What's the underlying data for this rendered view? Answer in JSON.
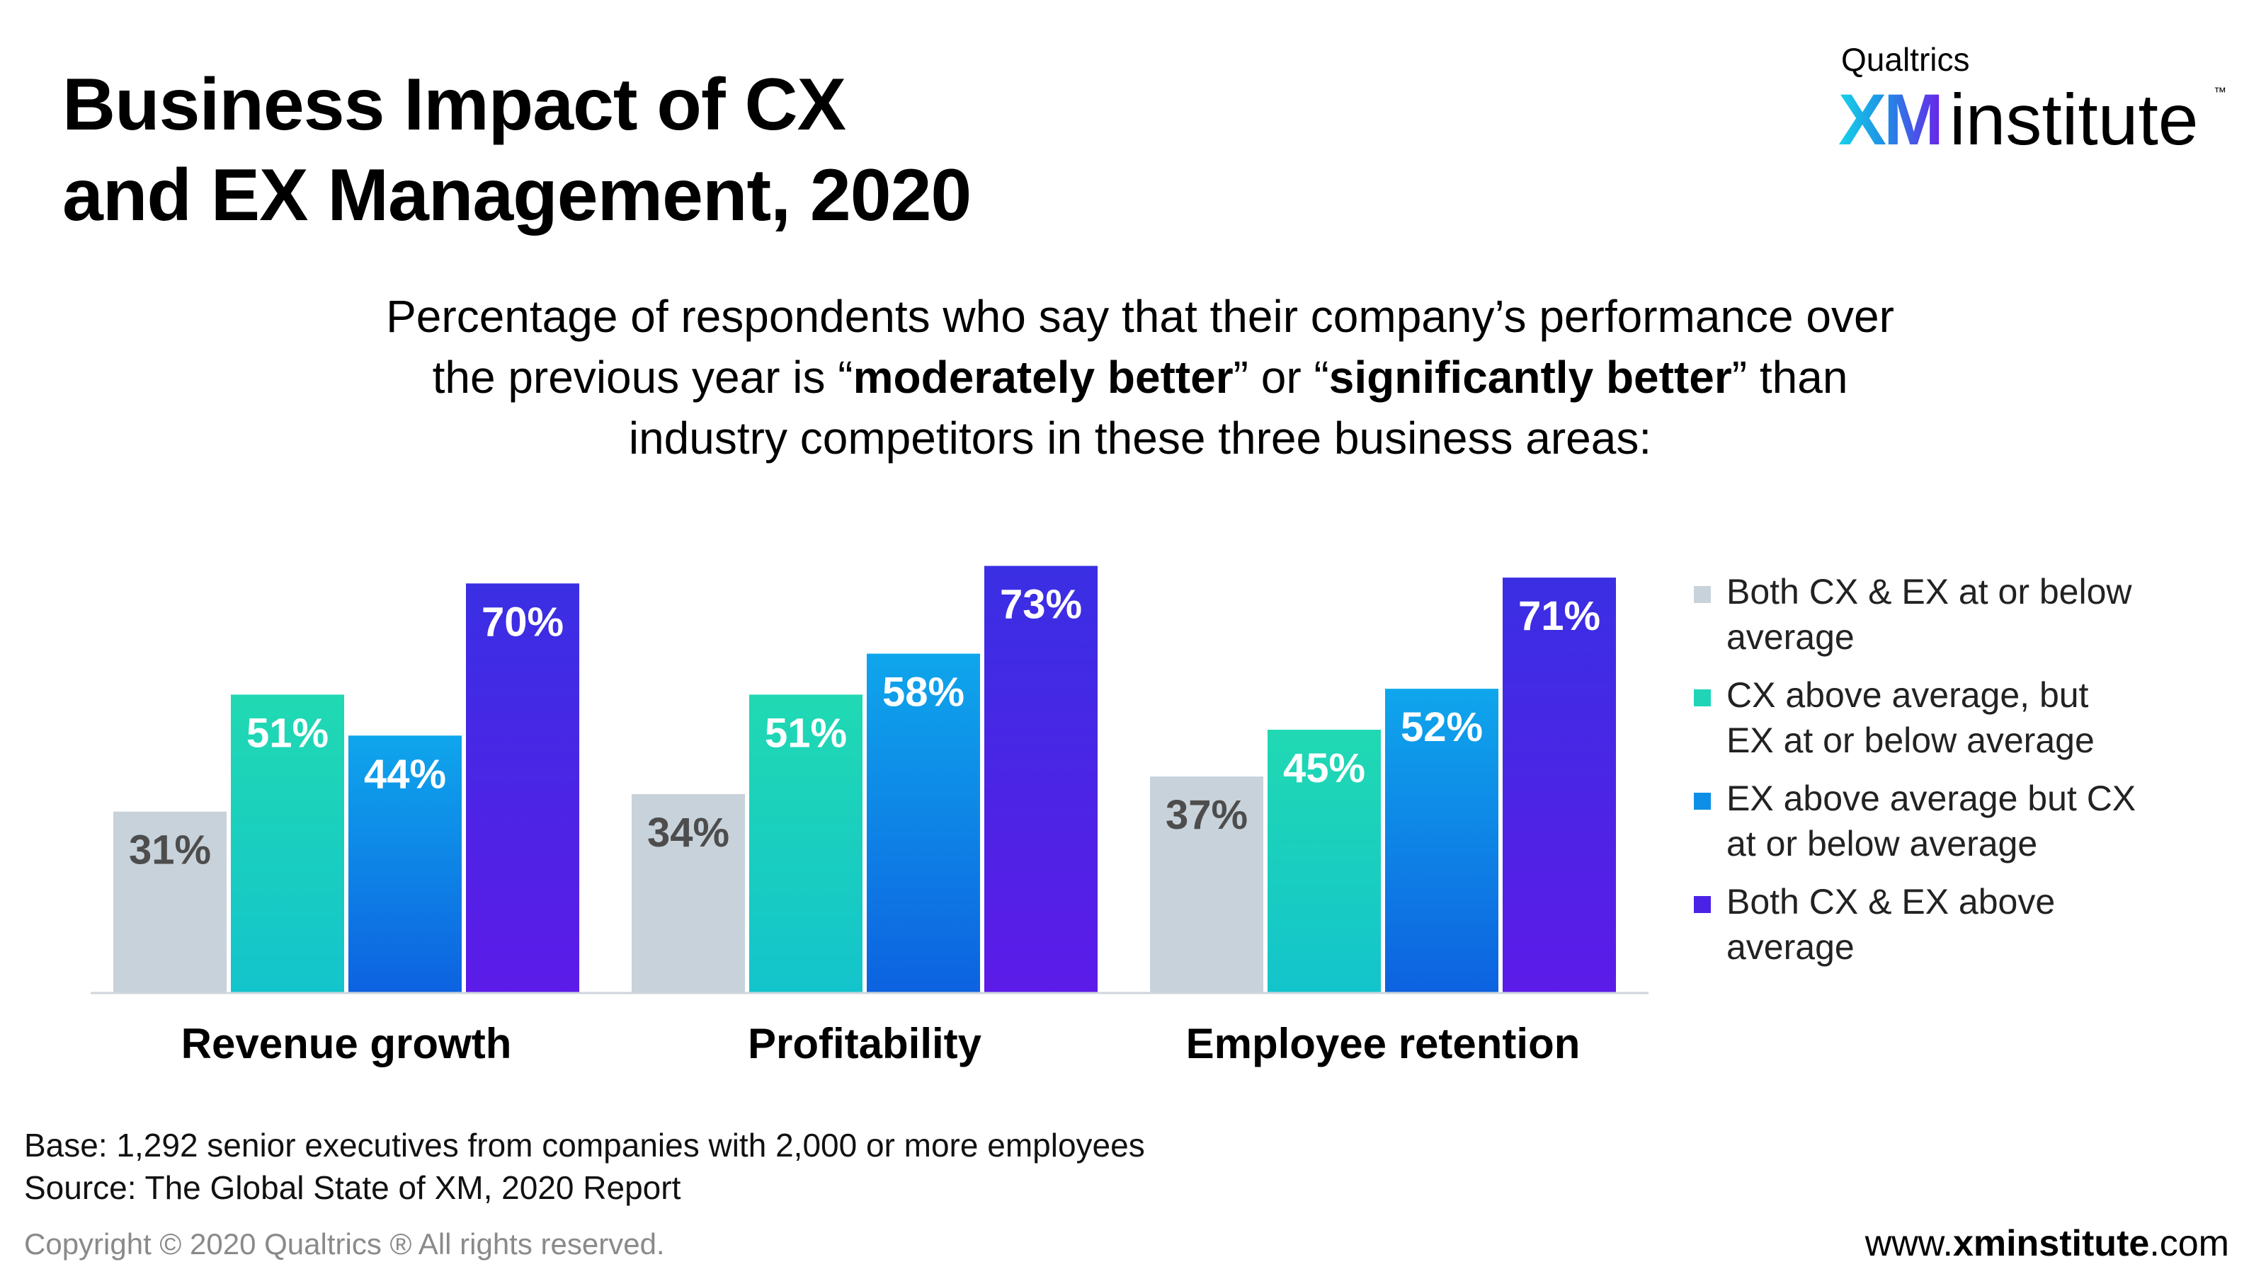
{
  "title": {
    "line1": "Business Impact of CX",
    "line2": "and EX Management, 2020"
  },
  "logo": {
    "top": "Qualtrics",
    "xm": "XM",
    "institute": "institute",
    "tm": "™"
  },
  "subtitle": {
    "line1": "Percentage of respondents who say that their company’s performance over",
    "line2_a": "the previous year is “",
    "line2_b": "moderately better",
    "line2_c": "” or “",
    "line2_d": "significantly better",
    "line2_e": "” than",
    "line3": "industry competitors in these three business areas:"
  },
  "chart_data": {
    "type": "bar",
    "categories": [
      "Revenue growth",
      "Profitability",
      "Employee retention"
    ],
    "series": [
      {
        "name": "Both CX & EX at or below average",
        "values": [
          31,
          34,
          37
        ],
        "color": "#c8d2da",
        "color_end": "#c8d2da",
        "label_color": "#4d4d4d"
      },
      {
        "name": "CX above average, but EX at or below average",
        "values": [
          51,
          51,
          45
        ],
        "color": "#20d9b2",
        "color_end": "#13c4cc",
        "label_color": "#ffffff"
      },
      {
        "name": "EX above average but CX at or below average",
        "values": [
          44,
          58,
          52
        ],
        "color": "#0fa6ec",
        "color_end": "#0d62e0",
        "label_color": "#ffffff"
      },
      {
        "name": "Both CX & EX above average",
        "values": [
          70,
          73,
          71
        ],
        "color": "#3a2fe3",
        "color_end": "#5c1be8",
        "label_color": "#ffffff"
      }
    ],
    "value_suffix": "%",
    "ylim": [
      0,
      75
    ],
    "grid": false,
    "legend": "right"
  },
  "legend": [
    {
      "line1": "Both CX & EX at or below",
      "line2": "average",
      "color": "#c8d2da"
    },
    {
      "line1": "CX above average, but",
      "line2": "EX at or below average",
      "color": "#20d4b8"
    },
    {
      "line1": "EX above average but CX",
      "line2": "at or below average",
      "color": "#0d8fe8"
    },
    {
      "line1": "Both CX & EX above",
      "line2": "average",
      "color": "#4a22e6"
    }
  ],
  "footnotes": {
    "base": "Base: 1,292 senior executives from companies with 2,000 or more employees",
    "source": "Source: The Global State of XM, 2020 Report",
    "copyright": "Copyright © 2020 Qualtrics ® All rights reserved.",
    "website_a": "www.",
    "website_b": "xminstitute",
    "website_c": ".com"
  }
}
